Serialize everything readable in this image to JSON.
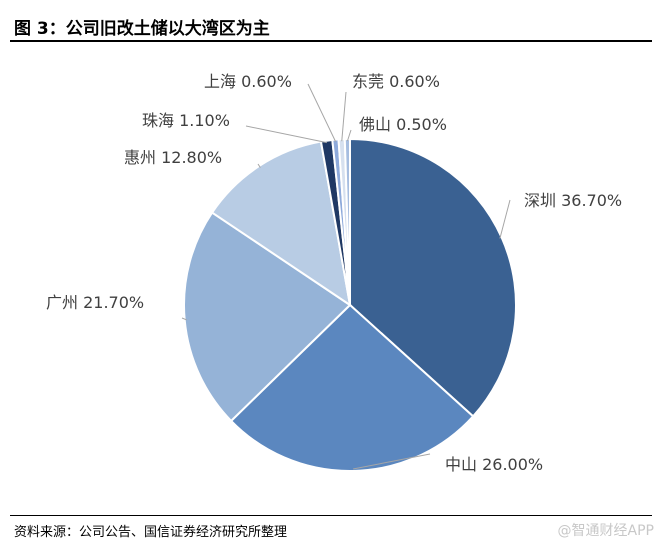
{
  "figure": {
    "title": "图 3：公司旧改土储以大湾区为主",
    "source": "资料来源：公司公告、国信证券经济研究所整理",
    "watermark": "@智通财经APP"
  },
  "chart_data": {
    "type": "pie",
    "title": "",
    "unit": "%",
    "categories": [
      "深圳",
      "中山",
      "广州",
      "惠州",
      "珠海",
      "上海",
      "东莞",
      "佛山"
    ],
    "values": [
      36.7,
      26.0,
      21.7,
      12.8,
      1.1,
      0.6,
      0.6,
      0.5
    ],
    "labels": [
      "深圳 36.70%",
      "中山 26.00%",
      "广州 21.70%",
      "惠州 12.80%",
      "珠海 1.10%",
      "上海 0.60%",
      "东莞 0.60%",
      "佛山 0.50%"
    ],
    "colors": [
      "#3a6192",
      "#5b87bf",
      "#95b3d7",
      "#b8cce4",
      "#1f3864",
      "#8eaadb",
      "#d6e0ef",
      "#a6bde0"
    ]
  }
}
